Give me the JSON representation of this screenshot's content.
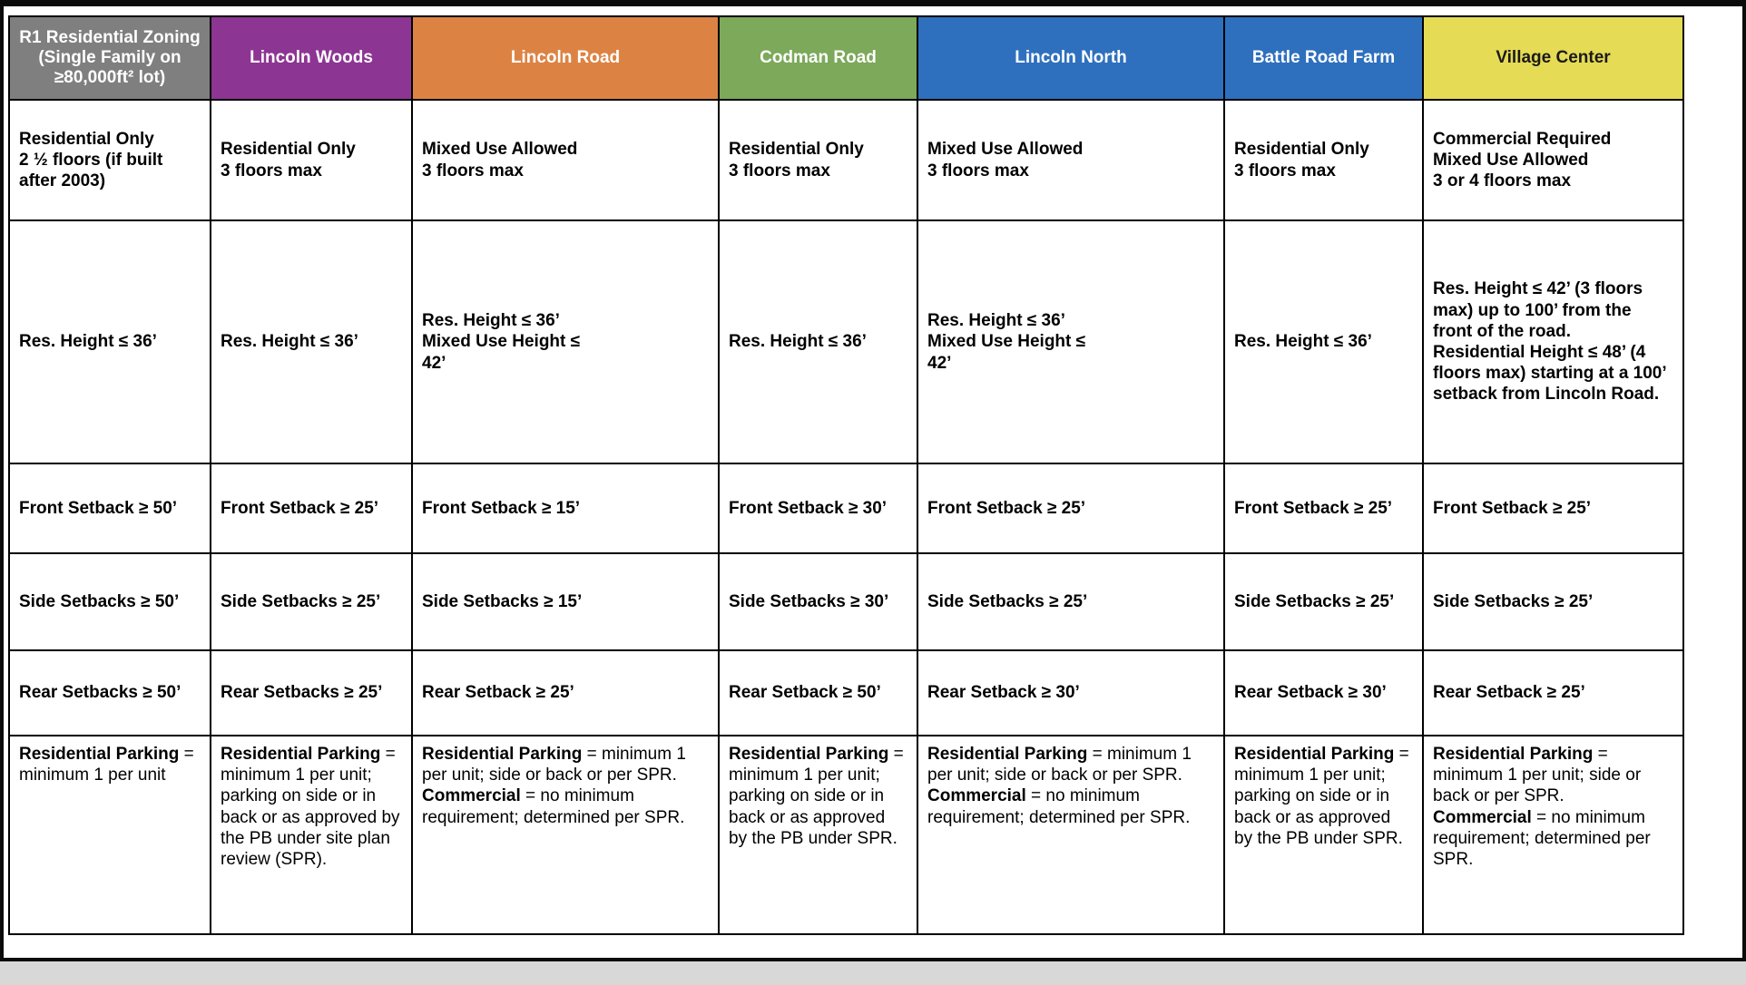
{
  "table": {
    "columns": [
      {
        "key": "r1",
        "header": {
          "label": "R1 Residential Zoning (Single Family on ≥80,000ft² lot)",
          "bg": "#7F7F7F",
          "fg": "#FFFFFF"
        },
        "use": "Residential Only\n2 ½ floors (if built after 2003)",
        "height": "Res. Height ≤ 36’",
        "front_setback": "Front Setback ≥ 50’",
        "side_setbacks": "Side Setbacks ≥ 50’",
        "rear_setbacks": "Rear Setbacks ≥ 50’",
        "parking": [
          {
            "term": "Residential Parking",
            "detail": " = minimum 1 per unit"
          }
        ]
      },
      {
        "key": "lincoln-woods",
        "header": {
          "label": "Lincoln Woods",
          "bg": "#8D3593",
          "fg": "#FFFFFF"
        },
        "use": "Residential Only\n3 floors max",
        "height": "Res. Height ≤ 36’",
        "front_setback": "Front Setback ≥ 25’",
        "side_setbacks": "Side Setbacks ≥ 25’",
        "rear_setbacks": "Rear Setbacks ≥ 25’",
        "parking": [
          {
            "term": "Residential Parking",
            "detail": " = minimum 1 per unit; parking on side or in back or as approved by the PB under site plan review (SPR)."
          }
        ]
      },
      {
        "key": "lincoln-road",
        "header": {
          "label": "Lincoln Road",
          "bg": "#DC8344",
          "fg": "#FFFFFF"
        },
        "use": "Mixed Use Allowed\n3 floors max",
        "height": "Res. Height ≤ 36’\nMixed Use Height ≤\n42’",
        "front_setback": "Front Setback ≥ 15’",
        "side_setbacks": "Side Setbacks ≥ 15’",
        "rear_setbacks": "Rear Setback ≥ 25’",
        "parking": [
          {
            "term": "Residential Parking",
            "detail": " = minimum 1 per unit; side or back or per SPR."
          },
          {
            "term": "Commercial",
            "detail": " = no minimum requirement; determined per SPR."
          }
        ]
      },
      {
        "key": "codman-road",
        "header": {
          "label": "Codman Road",
          "bg": "#7CA95A",
          "fg": "#FFFFFF"
        },
        "use": "Residential Only\n3 floors max",
        "height": "Res. Height ≤ 36’",
        "front_setback": "Front Setback ≥ 30’",
        "side_setbacks": "Side Setbacks ≥ 30’",
        "rear_setbacks": "Rear Setback ≥ 50’",
        "parking": [
          {
            "term": "Residential Parking",
            "detail": " = minimum 1 per unit; parking on side or in back or as approved by the PB under SPR."
          }
        ]
      },
      {
        "key": "lincoln-north",
        "header": {
          "label": "Lincoln North",
          "bg": "#2E70BE",
          "fg": "#FFFFFF"
        },
        "use": "Mixed Use Allowed\n3 floors max",
        "height": "Res. Height ≤ 36’\nMixed Use Height ≤\n42’",
        "front_setback": "Front Setback ≥ 25’",
        "side_setbacks": "Side Setbacks ≥ 25’",
        "rear_setbacks": "Rear Setback ≥ 30’",
        "parking": [
          {
            "term": "Residential Parking",
            "detail": " = minimum 1 per unit; side or back or per SPR."
          },
          {
            "term": "Commercial",
            "detail": " = no minimum requirement; determined per SPR."
          }
        ]
      },
      {
        "key": "battle-road-farm",
        "header": {
          "label": "Battle Road Farm",
          "bg": "#2E70BE",
          "fg": "#FFFFFF"
        },
        "use": "Residential Only\n3 floors max",
        "height": "Res. Height ≤ 36’",
        "front_setback": "Front Setback ≥ 25’",
        "side_setbacks": "Side Setbacks ≥ 25’",
        "rear_setbacks": "Rear Setback ≥ 30’",
        "parking": [
          {
            "term": "Residential Parking",
            "detail": " = minimum 1 per unit; parking on side or in back or as approved by the PB under SPR."
          }
        ]
      },
      {
        "key": "village-center",
        "header": {
          "label": "Village Center",
          "bg": "#E5DB54",
          "fg": "#1A1A1A"
        },
        "use": "Commercial Required\nMixed Use Allowed\n3 or 4 floors max",
        "height": "Res. Height ≤ 42’ (3 floors max) up to 100’ from the front of the road.\nResidential Height ≤ 48’ (4 floors max) starting at a 100’ setback from Lincoln Road.",
        "front_setback": "Front Setback ≥ 25’",
        "side_setbacks": "Side Setbacks ≥ 25’",
        "rear_setbacks": "Rear Setback ≥ 25’",
        "parking": [
          {
            "term": "Residential Parking",
            "detail": " = minimum 1 per unit; side or back or per SPR."
          },
          {
            "term": "Commercial",
            "detail": " = no minimum requirement; determined per SPR."
          }
        ]
      }
    ]
  }
}
